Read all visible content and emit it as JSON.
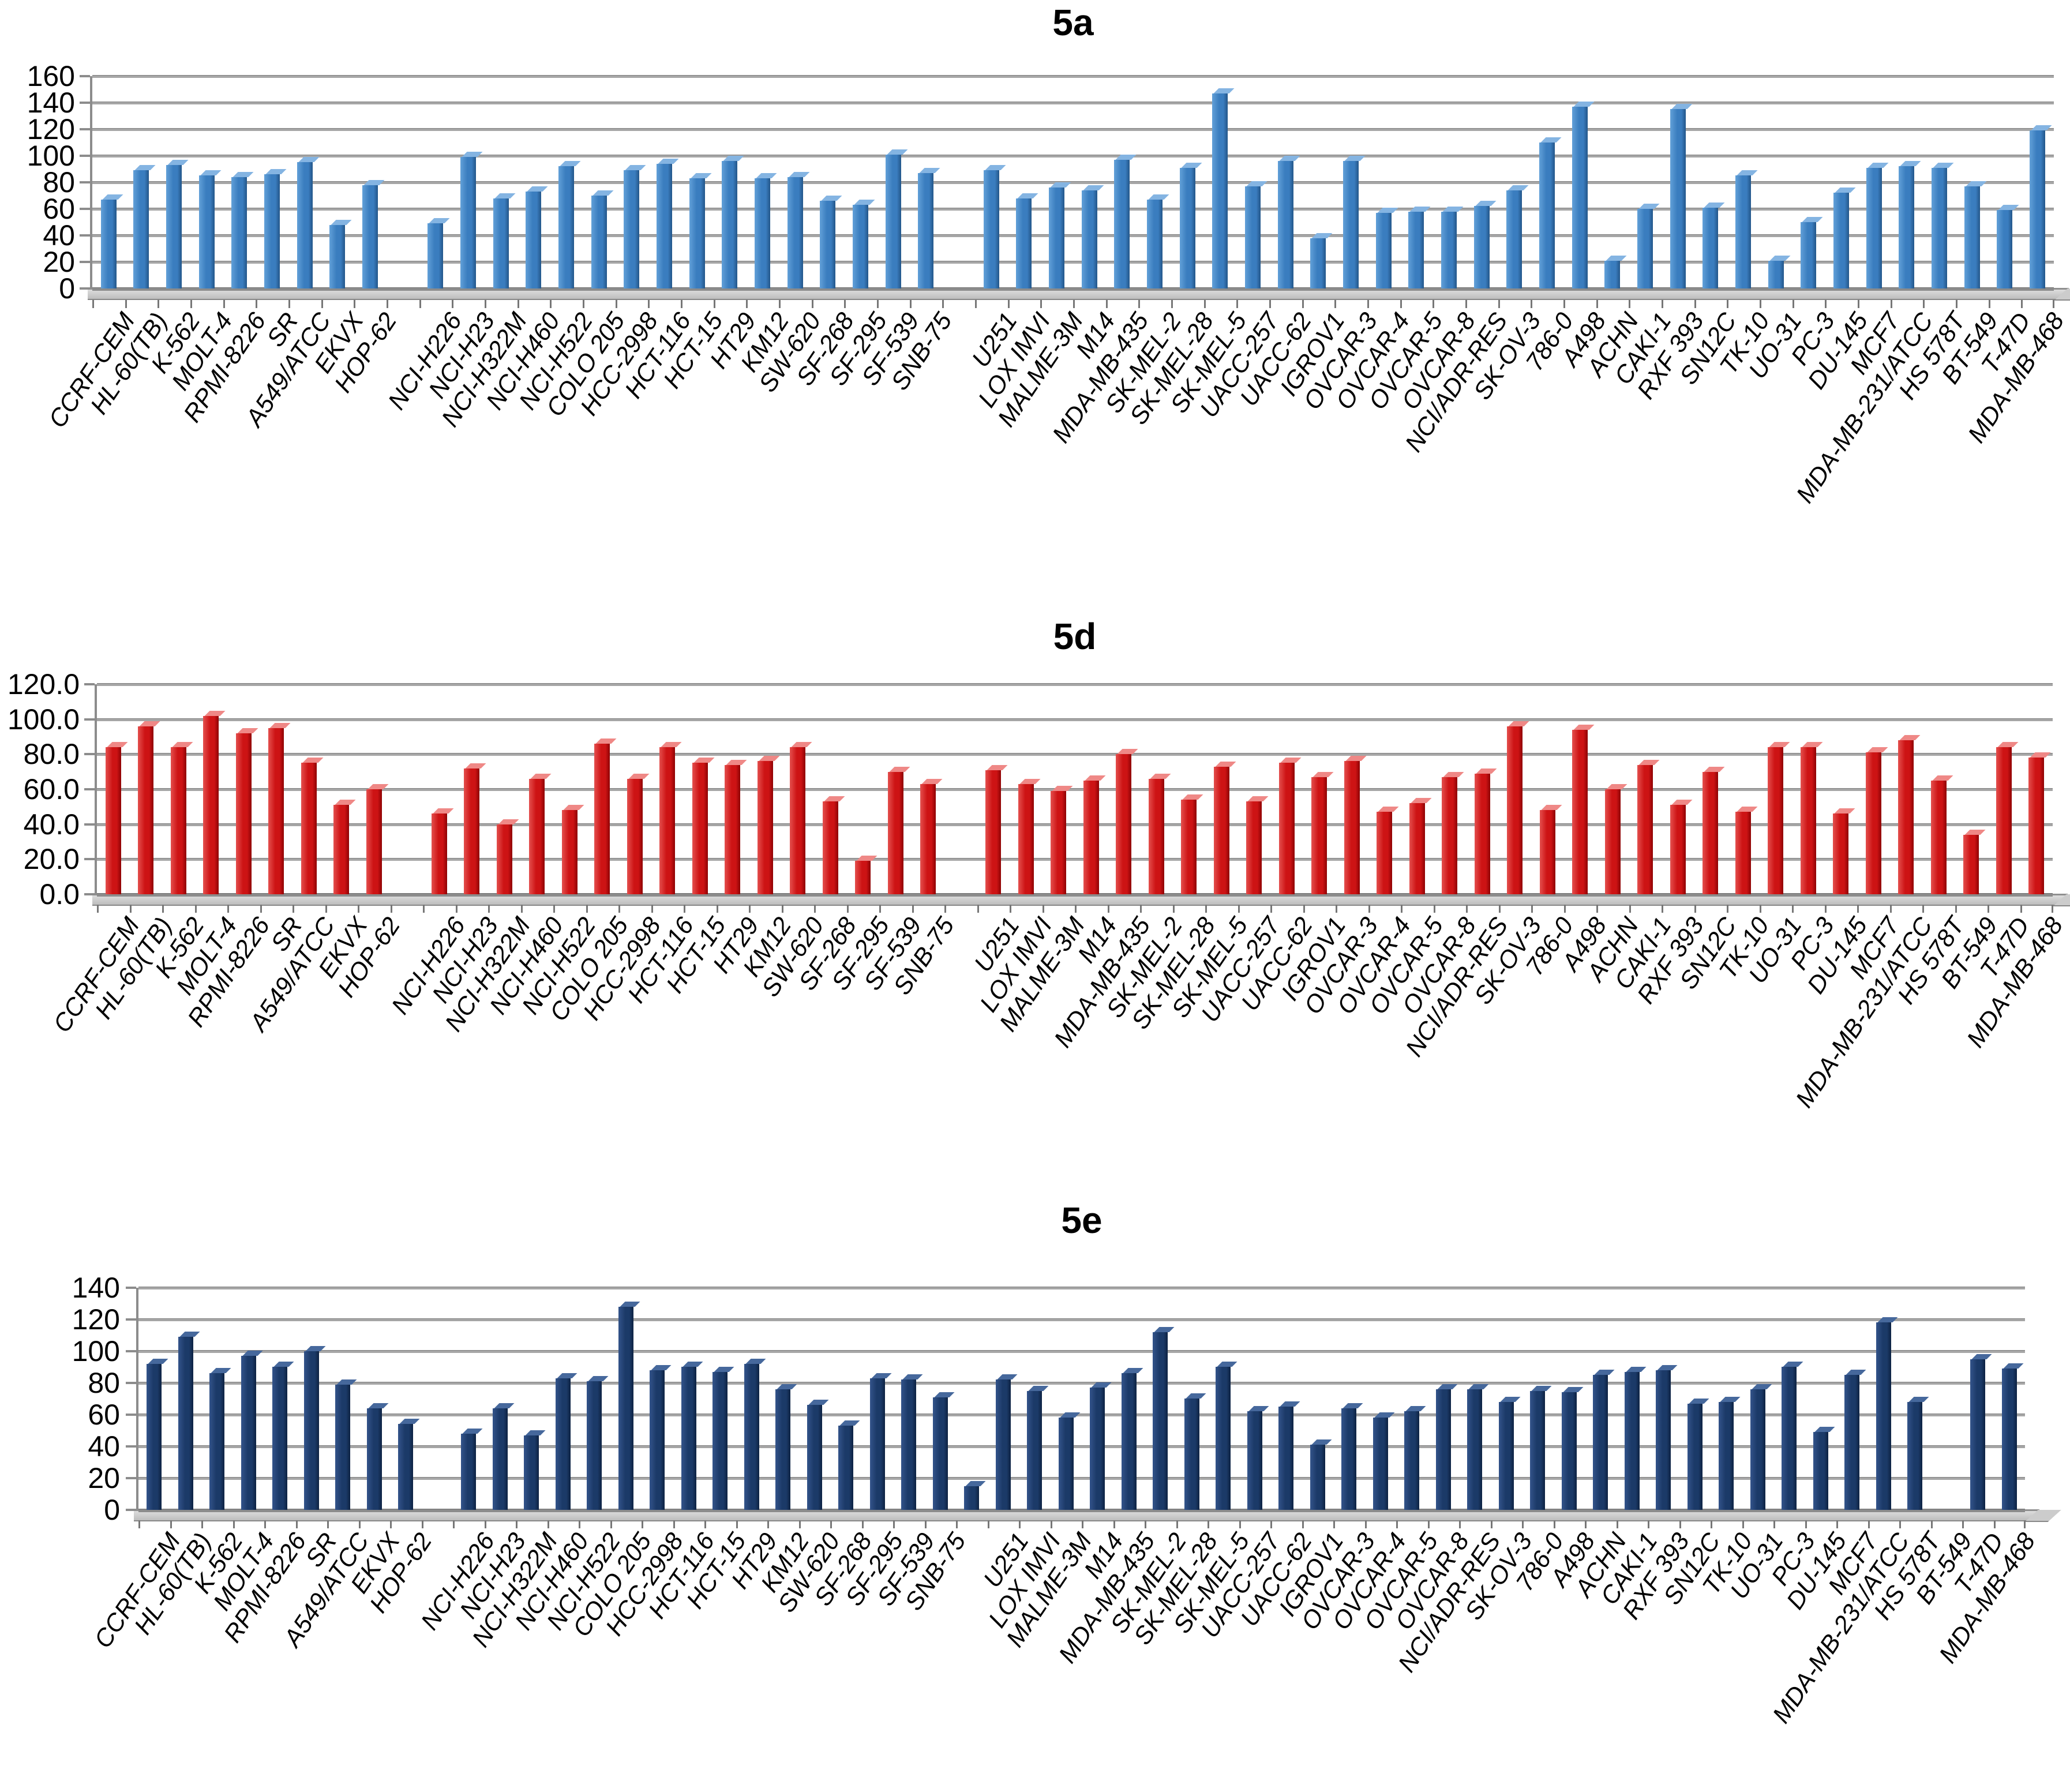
{
  "figure": {
    "background": "#ffffff"
  },
  "chart_data": [
    {
      "id": "5a",
      "type": "bar",
      "title": "5a",
      "xlabel": "",
      "ylabel": "",
      "ylim": [
        0,
        160
      ],
      "ytick_step": 20,
      "ytick_labels": [
        "0",
        "20",
        "40",
        "60",
        "80",
        "100",
        "120",
        "140",
        "160"
      ],
      "grid": true,
      "legend_position": "none",
      "bar_color": {
        "light": "#62a0d8",
        "mid": "#3a7dbf",
        "dark": "#235689",
        "cap": "#84b4e2"
      },
      "gaps_after": [
        "HOP-62",
        "SNB-75"
      ],
      "gap_extra_bar": null,
      "categories": [
        "CCRF-CEM",
        "HL-60(TB)",
        "K-562",
        "MOLT-4",
        "RPMI-8226",
        "SR",
        "A549/ATCC",
        "EKVX",
        "HOP-62",
        "NCI-H226",
        "NCI-H23",
        "NCI-H322M",
        "NCI-H460",
        "NCI-H522",
        "COLO 205",
        "HCC-2998",
        "HCT-116",
        "HCT-15",
        "HT29",
        "KM12",
        "SW-620",
        "SF-268",
        "SF-295",
        "SF-539",
        "SNB-75",
        "U251",
        "LOX IMVI",
        "MALME-3M",
        "M14",
        "MDA-MB-435",
        "SK-MEL-2",
        "SK-MEL-28",
        "SK-MEL-5",
        "UACC-257",
        "UACC-62",
        "IGROV1",
        "OVCAR-3",
        "OVCAR-4",
        "OVCAR-5",
        "OVCAR-8",
        "NCI/ADR-RES",
        "SK-OV-3",
        "786-0",
        "A498",
        "ACHN",
        "CAKI-1",
        "RXF 393",
        "SN12C",
        "TK-10",
        "UO-31",
        "PC-3",
        "DU-145",
        "MCF7",
        "MDA-MB-231/ATCC",
        "HS 578T",
        "BT-549",
        "T-47D",
        "MDA-MB-468"
      ],
      "values": [
        67,
        89,
        93,
        85,
        84,
        86,
        95,
        48,
        78,
        49,
        99,
        68,
        73,
        92,
        70,
        89,
        94,
        83,
        96,
        83,
        84,
        66,
        63,
        101,
        87,
        89,
        68,
        76,
        74,
        97,
        67,
        91,
        147,
        77,
        96,
        38,
        96,
        57,
        58,
        58,
        62,
        74,
        110,
        137,
        21,
        60,
        135,
        61,
        85,
        21,
        50,
        72,
        91,
        92,
        91,
        77,
        59,
        119
      ]
    },
    {
      "id": "5d",
      "type": "bar",
      "title": "5d",
      "xlabel": "",
      "ylabel": "",
      "ylim": [
        0,
        120
      ],
      "ytick_step": 20,
      "ytick_labels": [
        "0.0",
        "20.0",
        "40.0",
        "60.0",
        "80.0",
        "100.0",
        "120.0"
      ],
      "grid": true,
      "legend_position": "none",
      "bar_color": {
        "light": "#e4504e",
        "mid": "#cd1314",
        "dark": "#8e0304",
        "cap": "#ef8886"
      },
      "gaps_after": [
        "HOP-62",
        "SNB-75"
      ],
      "gap_extra_bar": null,
      "categories": [
        "CCRF-CEM",
        "HL-60(TB)",
        "K-562",
        "MOLT-4",
        "RPMI-8226",
        "SR",
        "A549/ATCC",
        "EKVX",
        "HOP-62",
        "NCI-H226",
        "NCI-H23",
        "NCI-H322M",
        "NCI-H460",
        "NCI-H522",
        "COLO 205",
        "HCC-2998",
        "HCT-116",
        "HCT-15",
        "HT29",
        "KM12",
        "SW-620",
        "SF-268",
        "SF-295",
        "SF-539",
        "SNB-75",
        "U251",
        "LOX IMVI",
        "MALME-3M",
        "M14",
        "MDA-MB-435",
        "SK-MEL-2",
        "SK-MEL-28",
        "SK-MEL-5",
        "UACC-257",
        "UACC-62",
        "IGROV1",
        "OVCAR-3",
        "OVCAR-4",
        "OVCAR-5",
        "OVCAR-8",
        "NCI/ADR-RES",
        "SK-OV-3",
        "786-0",
        "A498",
        "ACHN",
        "CAKI-1",
        "RXF 393",
        "SN12C",
        "TK-10",
        "UO-31",
        "PC-3",
        "DU-145",
        "MCF7",
        "MDA-MB-231/ATCC",
        "HS 578T",
        "BT-549",
        "T-47D",
        "MDA-MB-468"
      ],
      "values": [
        84,
        96,
        84,
        102,
        92,
        95,
        75,
        51,
        60,
        46,
        72,
        40,
        66,
        48,
        86,
        66,
        84,
        75,
        74,
        76,
        84,
        53,
        19,
        70,
        63,
        71,
        63,
        59,
        65,
        80,
        66,
        54,
        73,
        53,
        75,
        67,
        76,
        47,
        52,
        67,
        69,
        96,
        48,
        94,
        60,
        74,
        51,
        70,
        47,
        84,
        84,
        46,
        81,
        88,
        65,
        34,
        84,
        78
      ]
    },
    {
      "id": "5e",
      "type": "bar",
      "title": "5e",
      "xlabel": "",
      "ylabel": "",
      "ylim": [
        0,
        140
      ],
      "ytick_step": 20,
      "ytick_labels": [
        "0",
        "20",
        "40",
        "60",
        "80",
        "100",
        "120",
        "140"
      ],
      "grid": true,
      "legend_position": "none",
      "bar_color": {
        "light": "#33538a",
        "mid": "#1b3a68",
        "dark": "#0d2242",
        "cap": "#46689c"
      },
      "gaps_after": [
        "HOP-62",
        "SNB-75"
      ],
      "gap_extra_bar": {
        "after": "SNB-75",
        "value": 15
      },
      "categories": [
        "CCRF-CEM",
        "HL-60(TB)",
        "K-562",
        "MOLT-4",
        "RPMI-8226",
        "SR",
        "A549/ATCC",
        "EKVX",
        "HOP-62",
        "NCI-H226",
        "NCI-H23",
        "NCI-H322M",
        "NCI-H460",
        "NCI-H522",
        "COLO 205",
        "HCC-2998",
        "HCT-116",
        "HCT-15",
        "HT29",
        "KM12",
        "SW-620",
        "SF-268",
        "SF-295",
        "SF-539",
        "SNB-75",
        "U251",
        "LOX IMVI",
        "MALME-3M",
        "M14",
        "MDA-MB-435",
        "SK-MEL-2",
        "SK-MEL-28",
        "SK-MEL-5",
        "UACC-257",
        "UACC-62",
        "IGROV1",
        "OVCAR-3",
        "OVCAR-4",
        "OVCAR-5",
        "OVCAR-8",
        "NCI/ADR-RES",
        "SK-OV-3",
        "786-0",
        "A498",
        "ACHN",
        "CAKI-1",
        "RXF 393",
        "SN12C",
        "TK-10",
        "UO-31",
        "PC-3",
        "DU-145",
        "MCF7",
        "MDA-MB-231/ATCC",
        "HS 578T",
        "BT-549",
        "T-47D",
        "MDA-MB-468"
      ],
      "values": [
        92,
        109,
        86,
        97,
        90,
        100,
        79,
        64,
        54,
        48,
        64,
        47,
        83,
        81,
        128,
        88,
        90,
        87,
        92,
        76,
        66,
        53,
        83,
        82,
        71,
        82,
        75,
        58,
        77,
        86,
        112,
        70,
        90,
        62,
        65,
        41,
        64,
        58,
        62,
        76,
        76,
        68,
        75,
        74,
        85,
        87,
        88,
        67,
        68,
        76,
        90,
        49,
        85,
        118,
        68,
        null,
        95,
        89
      ]
    }
  ]
}
